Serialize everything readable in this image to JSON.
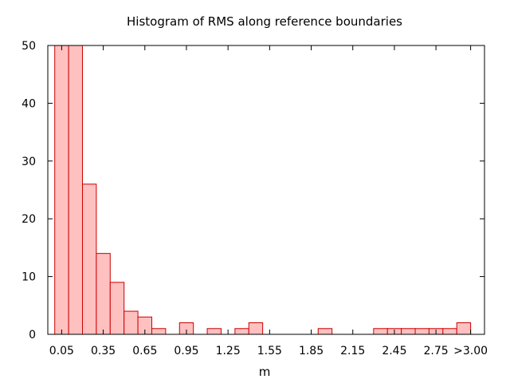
{
  "chart_data": {
    "type": "bar",
    "title": "Histogram of RMS along reference boundaries",
    "xlabel": "m",
    "ylabel": "",
    "ylim": [
      0,
      50
    ],
    "yticks": [
      0,
      10,
      20,
      30,
      40,
      50
    ],
    "xticks": [
      {
        "value": 0.05,
        "label": "0.05"
      },
      {
        "value": 0.35,
        "label": "0.35"
      },
      {
        "value": 0.65,
        "label": "0.65"
      },
      {
        "value": 0.95,
        "label": "0.95"
      },
      {
        "value": 1.25,
        "label": "1.25"
      },
      {
        "value": 1.55,
        "label": "1.55"
      },
      {
        "value": 1.85,
        "label": "1.85"
      },
      {
        "value": 2.15,
        "label": "2.15"
      },
      {
        "value": 2.45,
        "label": "2.45"
      },
      {
        "value": 2.75,
        "label": "2.75"
      },
      {
        "value": 3.0,
        "label": ">3.00"
      }
    ],
    "bin_width": 0.1,
    "bin_centers": [
      0.05,
      0.15,
      0.25,
      0.35,
      0.45,
      0.55,
      0.65,
      0.75,
      0.85,
      0.95,
      1.05,
      1.15,
      1.25,
      1.35,
      1.45,
      1.55,
      1.65,
      1.75,
      1.85,
      1.95,
      2.05,
      2.15,
      2.25,
      2.35,
      2.45,
      2.55,
      2.65,
      2.75,
      2.85,
      2.95
    ],
    "values": [
      50,
      50,
      26,
      14,
      9,
      4,
      3,
      1,
      0,
      2,
      0,
      1,
      0,
      1,
      2,
      0,
      0,
      0,
      0,
      1,
      0,
      0,
      0,
      1,
      1,
      1,
      1,
      1,
      1,
      2
    ],
    "xlim": [
      -0.05,
      3.1
    ],
    "grid": false,
    "colors": {
      "bar_fill": "#ffc0c0",
      "bar_stroke": "#cc0000",
      "axis": "#000000"
    }
  }
}
